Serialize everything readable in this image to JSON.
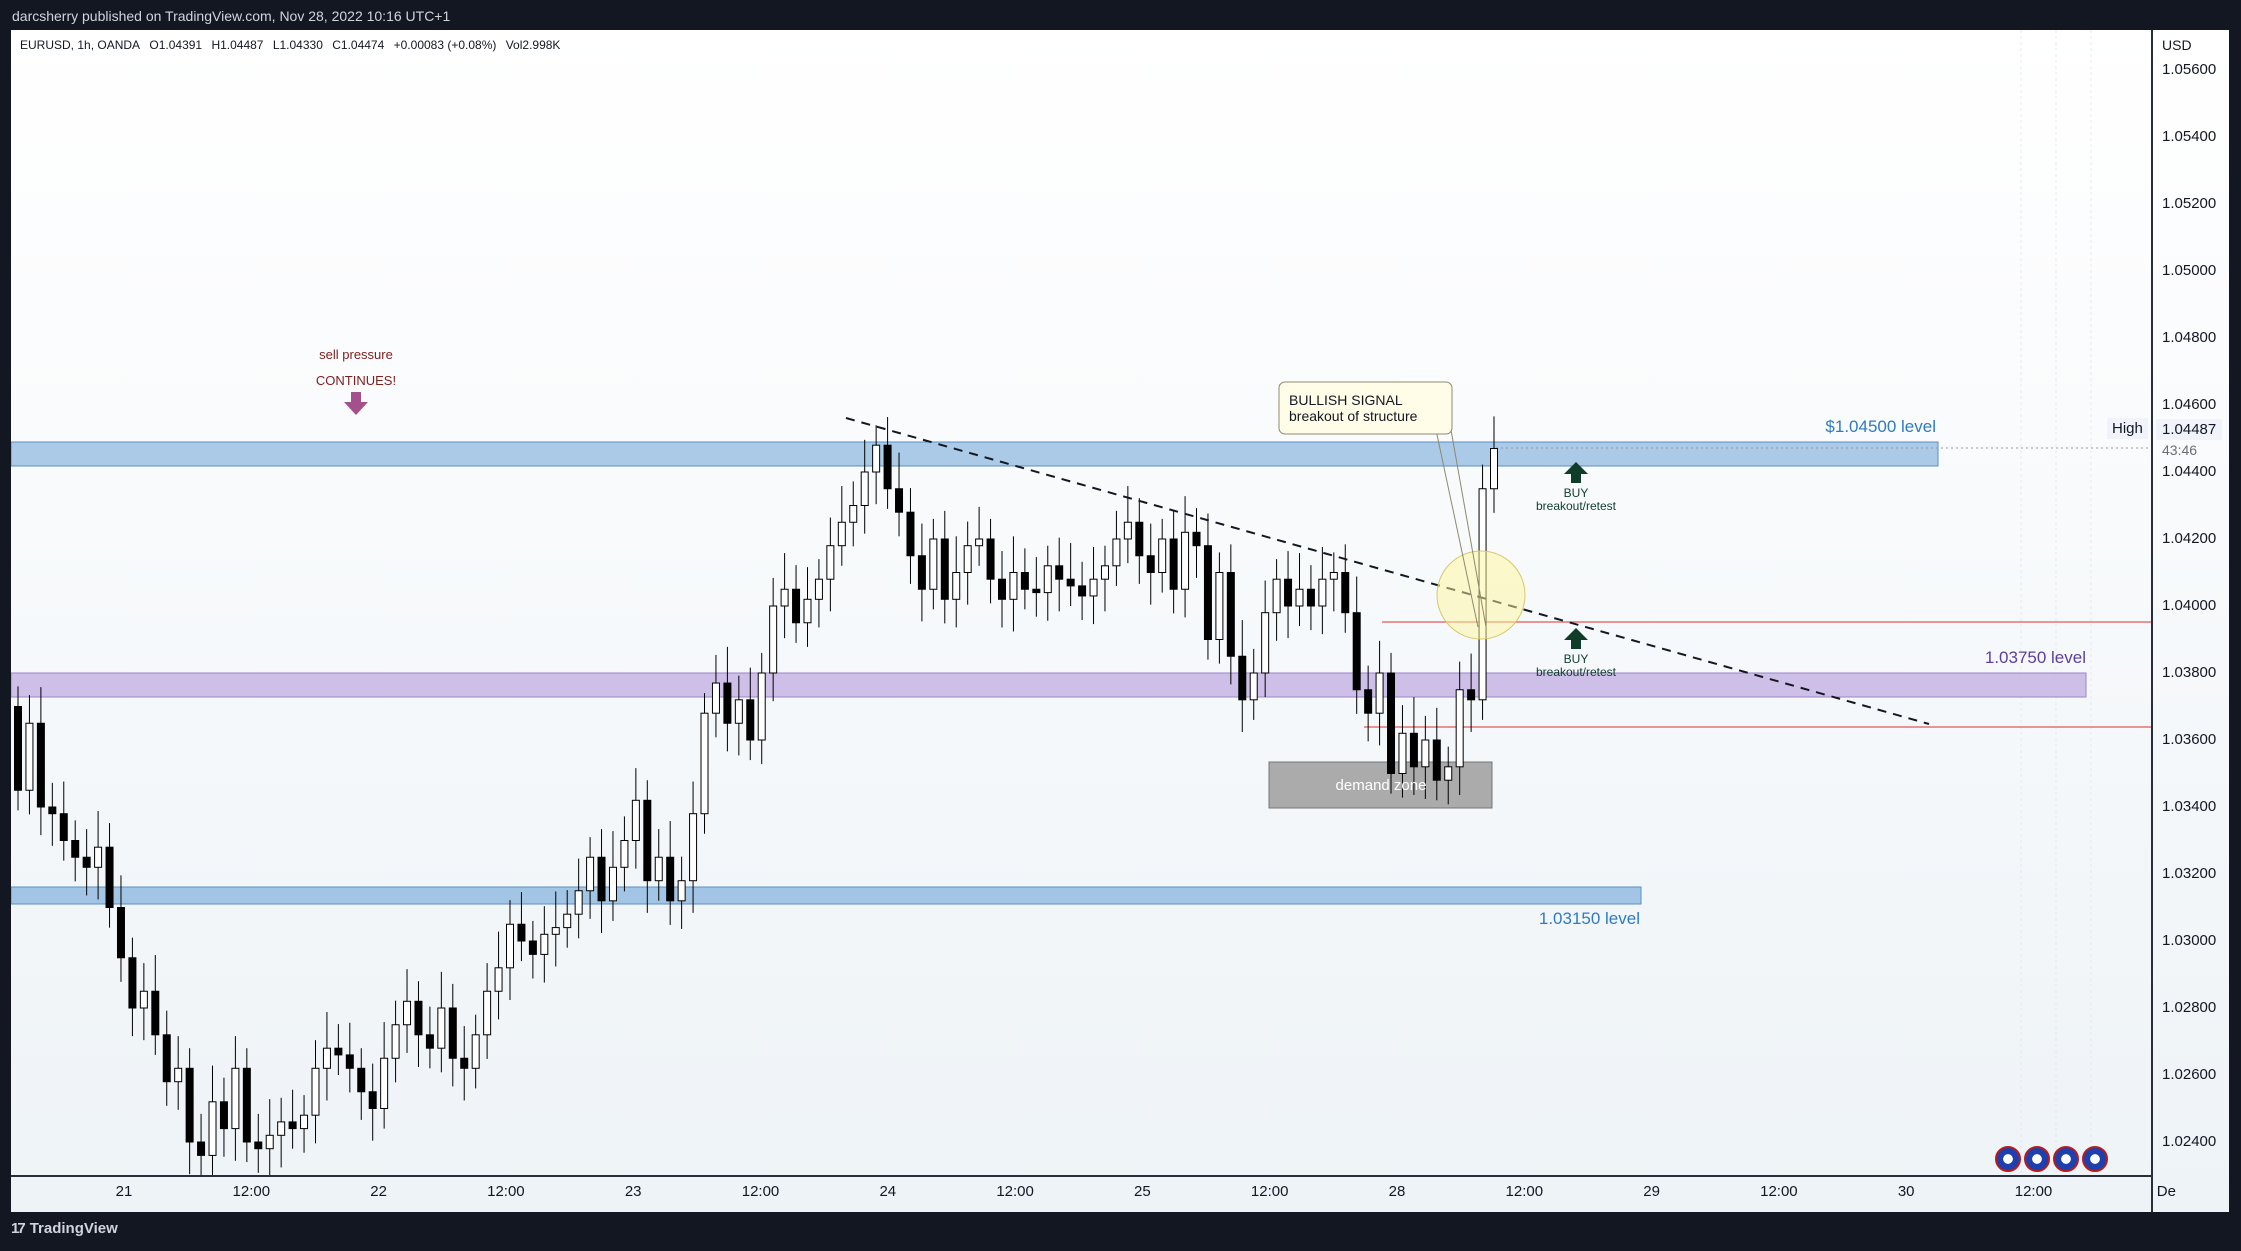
{
  "header": {
    "published": "darcsherry published on TradingView.com, Nov 28, 2022 10:16 UTC+1"
  },
  "legend": {
    "symbol": "EURUSD, 1h, OANDA",
    "open": "O1.04391",
    "high": "H1.04487",
    "low": "L1.04330",
    "close": "C1.04474",
    "change": "+0.00083 (+0.08%)",
    "volume": "Vol2.998K"
  },
  "price_axis": {
    "currency": "USD",
    "ticks": [
      "1.05600",
      "1.05400",
      "1.05200",
      "1.05000",
      "1.04800",
      "1.04600",
      "1.04400",
      "1.04200",
      "1.04000",
      "1.03800",
      "1.03600",
      "1.03400",
      "1.03200",
      "1.03000",
      "1.02800",
      "1.02600",
      "1.02400"
    ],
    "high_label": "High",
    "current_price": "1.04487",
    "countdown": "43:46"
  },
  "time_axis": {
    "ticks": [
      "21",
      "12:00",
      "22",
      "12:00",
      "23",
      "12:00",
      "24",
      "12:00",
      "25",
      "12:00",
      "28",
      "12:00",
      "29",
      "12:00",
      "30",
      "12:00",
      "De"
    ]
  },
  "annotations": {
    "sell_line1": "sell pressure",
    "sell_line2": "CONTINUES!",
    "level_top": "$1.04500 level",
    "level_mid": "1.03750 level",
    "level_low": "1.03150 level",
    "callout_line1": "BULLISH SIGNAL",
    "callout_line2": "breakout of structure",
    "buy1": "BUY",
    "buy1_sub": "breakout/retest",
    "buy2": "BUY",
    "buy2_sub": "breakout/retest",
    "demand": "demand zone"
  },
  "footer": {
    "brand": "TradingView"
  },
  "colors": {
    "up": "#ffffff",
    "down": "#000000",
    "zone_blue": "#8fb9e0",
    "zone_purple": "#c7b4e6",
    "demand": "#9e9e9e",
    "red_line": "#e57373"
  },
  "chart_data": {
    "type": "candlestick",
    "symbol": "EURUSD",
    "timeframe": "1h",
    "ylim": [
      1.0235,
      1.0575
    ],
    "levels": [
      1.045,
      1.0375,
      1.0315
    ],
    "red_lines": [
      1.0397,
      1.0365
    ],
    "candles": [
      [
        1.037,
        1.0345
      ],
      [
        1.0345,
        1.0365
      ],
      [
        1.0365,
        1.034
      ],
      [
        1.034,
        1.0338
      ],
      [
        1.0338,
        1.033
      ],
      [
        1.033,
        1.0325
      ],
      [
        1.0325,
        1.0322
      ],
      [
        1.0322,
        1.0328
      ],
      [
        1.0328,
        1.031
      ],
      [
        1.031,
        1.0295
      ],
      [
        1.0295,
        1.028
      ],
      [
        1.028,
        1.0285
      ],
      [
        1.0285,
        1.0272
      ],
      [
        1.0272,
        1.0258
      ],
      [
        1.0258,
        1.0262
      ],
      [
        1.0262,
        1.024
      ],
      [
        1.024,
        1.0236
      ],
      [
        1.0236,
        1.0252
      ],
      [
        1.0252,
        1.0244
      ],
      [
        1.0244,
        1.0262
      ],
      [
        1.0262,
        1.024
      ],
      [
        1.024,
        1.0238
      ],
      [
        1.0238,
        1.0242
      ],
      [
        1.0242,
        1.0246
      ],
      [
        1.0246,
        1.0244
      ],
      [
        1.0244,
        1.0248
      ],
      [
        1.0248,
        1.0262
      ],
      [
        1.0262,
        1.0268
      ],
      [
        1.0268,
        1.0266
      ],
      [
        1.0266,
        1.0262
      ],
      [
        1.0262,
        1.0255
      ],
      [
        1.0255,
        1.025
      ],
      [
        1.025,
        1.0265
      ],
      [
        1.0265,
        1.0275
      ],
      [
        1.0275,
        1.0282
      ],
      [
        1.0282,
        1.0272
      ],
      [
        1.0272,
        1.0268
      ],
      [
        1.0268,
        1.028
      ],
      [
        1.028,
        1.0265
      ],
      [
        1.0265,
        1.0262
      ],
      [
        1.0262,
        1.0272
      ],
      [
        1.0272,
        1.0285
      ],
      [
        1.0285,
        1.0292
      ],
      [
        1.0292,
        1.0305
      ],
      [
        1.0305,
        1.03
      ],
      [
        1.03,
        1.0296
      ],
      [
        1.0296,
        1.0302
      ],
      [
        1.0302,
        1.0304
      ],
      [
        1.0304,
        1.0308
      ],
      [
        1.0308,
        1.0315
      ],
      [
        1.0315,
        1.0325
      ],
      [
        1.0325,
        1.0312
      ],
      [
        1.0312,
        1.0322
      ],
      [
        1.0322,
        1.033
      ],
      [
        1.033,
        1.0342
      ],
      [
        1.0342,
        1.0318
      ],
      [
        1.0318,
        1.0325
      ],
      [
        1.0325,
        1.0312
      ],
      [
        1.0312,
        1.0318
      ],
      [
        1.0318,
        1.0338
      ],
      [
        1.0338,
        1.0368
      ],
      [
        1.0368,
        1.0377
      ],
      [
        1.0377,
        1.0365
      ],
      [
        1.0365,
        1.0372
      ],
      [
        1.0372,
        1.036
      ],
      [
        1.036,
        1.038
      ],
      [
        1.038,
        1.04
      ],
      [
        1.04,
        1.0405
      ],
      [
        1.0405,
        1.0395
      ],
      [
        1.0395,
        1.0402
      ],
      [
        1.0402,
        1.0408
      ],
      [
        1.0408,
        1.0418
      ],
      [
        1.0418,
        1.0425
      ],
      [
        1.0425,
        1.043
      ],
      [
        1.043,
        1.044
      ],
      [
        1.044,
        1.0448
      ],
      [
        1.0448,
        1.0435
      ],
      [
        1.0435,
        1.0428
      ],
      [
        1.0428,
        1.0415
      ],
      [
        1.0415,
        1.0405
      ],
      [
        1.0405,
        1.042
      ],
      [
        1.042,
        1.0402
      ],
      [
        1.0402,
        1.041
      ],
      [
        1.041,
        1.0418
      ],
      [
        1.0418,
        1.042
      ],
      [
        1.042,
        1.0408
      ],
      [
        1.0408,
        1.0402
      ],
      [
        1.0402,
        1.041
      ],
      [
        1.041,
        1.0405
      ],
      [
        1.0405,
        1.0404
      ],
      [
        1.0404,
        1.0412
      ],
      [
        1.0412,
        1.0408
      ],
      [
        1.0408,
        1.0406
      ],
      [
        1.0406,
        1.0403
      ],
      [
        1.0403,
        1.0408
      ],
      [
        1.0408,
        1.0412
      ],
      [
        1.0412,
        1.042
      ],
      [
        1.042,
        1.0425
      ],
      [
        1.0425,
        1.0415
      ],
      [
        1.0415,
        1.041
      ],
      [
        1.041,
        1.042
      ],
      [
        1.042,
        1.0405
      ],
      [
        1.0405,
        1.0422
      ],
      [
        1.0422,
        1.0418
      ],
      [
        1.0418,
        1.039
      ],
      [
        1.039,
        1.041
      ],
      [
        1.041,
        1.0385
      ],
      [
        1.0385,
        1.0372
      ],
      [
        1.0372,
        1.038
      ],
      [
        1.038,
        1.0398
      ],
      [
        1.0398,
        1.0408
      ],
      [
        1.0408,
        1.04
      ],
      [
        1.04,
        1.0405
      ],
      [
        1.0405,
        1.04
      ],
      [
        1.04,
        1.0408
      ],
      [
        1.0408,
        1.041
      ],
      [
        1.041,
        1.0398
      ],
      [
        1.0398,
        1.0375
      ],
      [
        1.0375,
        1.0368
      ],
      [
        1.0368,
        1.038
      ],
      [
        1.038,
        1.035
      ],
      [
        1.035,
        1.0362
      ],
      [
        1.0362,
        1.0352
      ],
      [
        1.0352,
        1.036
      ],
      [
        1.036,
        1.0348
      ],
      [
        1.0348,
        1.0352
      ],
      [
        1.0352,
        1.0375
      ],
      [
        1.0375,
        1.0372
      ],
      [
        1.0372,
        1.0435
      ],
      [
        1.0435,
        1.0447
      ]
    ]
  }
}
